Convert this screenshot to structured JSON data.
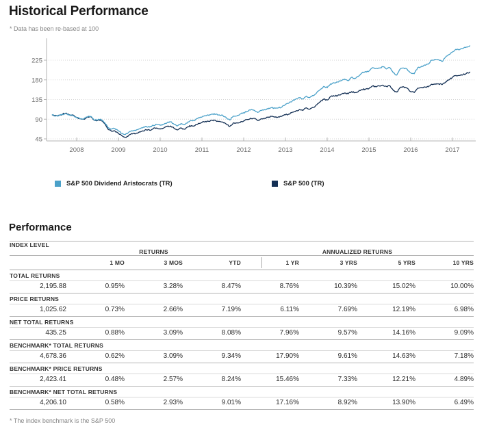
{
  "page": {
    "title": "Historical Performance",
    "subtitle": "* Data has been re-based at 100",
    "section2_title": "Performance",
    "footnote": "* The index benchmark is the S&P 500"
  },
  "colors": {
    "aristocrats_line": "#4BA1C9",
    "sp500_line": "#132F54",
    "axis": "#B3B3B3",
    "gridline": "#D4D4D4",
    "tick_label": "#6E6E6E"
  },
  "chart_data": {
    "type": "line",
    "title": "Historical Performance",
    "note": "* Data has been re-based at 100",
    "xlabel": "",
    "ylabel": "",
    "x_tick_labels": [
      "2008",
      "2009",
      "2010",
      "2011",
      "2012",
      "2013",
      "2014",
      "2015",
      "2016",
      "2017"
    ],
    "y_ticks": [
      45,
      90,
      135,
      180,
      225
    ],
    "ylim": [
      37,
      272
    ],
    "xlim": [
      2007.28,
      2017.56
    ],
    "x_start_year": 2007.417,
    "x_step_years": 0.083333,
    "grid": "horizontal-dotted",
    "legend_position": "bottom",
    "legend": [
      {
        "label": "S&P 500 Dividend Aristocrats (TR)",
        "color": "#4BA1C9"
      },
      {
        "label": "S&P 500 (TR)",
        "color": "#132F54"
      }
    ],
    "series": [
      {
        "name": "S&P 500 Dividend Aristocrats (TR)",
        "color": "#4BA1C9",
        "values": [
          100,
          97.5,
          98.5,
          101,
          102,
          99,
          98.5,
          94,
          91,
          90.5,
          95,
          96.5,
          88.5,
          88,
          90,
          82.5,
          71,
          67.5,
          68.5,
          63.5,
          57.5,
          55,
          60.5,
          63,
          64,
          68,
          70.5,
          73.5,
          72,
          76,
          78.5,
          76,
          78,
          82,
          84,
          78.5,
          75,
          80,
          77.5,
          84,
          87,
          87.5,
          93.5,
          95,
          98,
          98.5,
          102,
          101.5,
          100,
          98.5,
          93.5,
          88,
          97,
          97.5,
          102,
          105,
          108,
          111,
          110.5,
          105.5,
          110,
          112,
          113.5,
          116.5,
          115,
          116,
          118,
          124,
          127,
          132,
          136,
          139,
          136.5,
          143,
          139.5,
          144,
          151,
          158,
          165,
          162,
          171,
          173,
          175,
          178,
          182,
          178,
          186,
          183,
          188,
          196,
          199,
          200,
          208,
          206,
          207,
          210,
          205,
          208,
          196,
          191,
          205,
          207,
          204,
          196,
          194,
          208,
          210,
          214,
          216,
          225,
          227,
          226,
          222,
          232,
          238,
          244,
          250,
          249,
          252,
          255,
          258
        ]
      },
      {
        "name": "S&P 500 (TR)",
        "color": "#132F54",
        "values": [
          100,
          98,
          99,
          102,
          104,
          100,
          99.5,
          93.5,
          90.5,
          90,
          94.5,
          96,
          88,
          87,
          88.5,
          80.5,
          67,
          62.5,
          63,
          58,
          52,
          48,
          53.5,
          56.5,
          57,
          61,
          63.5,
          66,
          64.5,
          68.5,
          70,
          67.5,
          69.5,
          73.5,
          74.5,
          69,
          65.5,
          70,
          67,
          73,
          75.5,
          75.5,
          80.5,
          82.5,
          85,
          85,
          87.5,
          86.5,
          85,
          83.5,
          79,
          73.5,
          81.5,
          81.5,
          82.5,
          86,
          89.5,
          92.5,
          92,
          87,
          90.5,
          92,
          94,
          96.5,
          94.5,
          95.5,
          97,
          100,
          102,
          106,
          109,
          112,
          110,
          116,
          113,
          117,
          123,
          130,
          136,
          134,
          142,
          143,
          144,
          147,
          150,
          148,
          153,
          151,
          154,
          158,
          159,
          160,
          166,
          164,
          166,
          168,
          165,
          167,
          156,
          152,
          163,
          164,
          161,
          153,
          151,
          161,
          162,
          164,
          164,
          170,
          171,
          171,
          169,
          175,
          180,
          186,
          190,
          190,
          192,
          195,
          198
        ]
      }
    ]
  },
  "table": {
    "group_headers": [
      {
        "label": "INDEX LEVEL"
      },
      {
        "label": "RETURNS"
      },
      {
        "label": "ANNUALIZED RETURNS"
      }
    ],
    "column_headers": [
      "1 MO",
      "3 MOS",
      "YTD",
      "1 YR",
      "3 YRS",
      "5 YRS",
      "10 YRS"
    ],
    "rows": [
      {
        "label": "TOTAL RETURNS",
        "index_level": "2,195.88",
        "values": [
          "0.95%",
          "3.28%",
          "8.47%",
          "8.76%",
          "10.39%",
          "15.02%",
          "10.00%"
        ]
      },
      {
        "label": "PRICE RETURNS",
        "index_level": "1,025.62",
        "values": [
          "0.73%",
          "2.66%",
          "7.19%",
          "6.11%",
          "7.69%",
          "12.19%",
          "6.98%"
        ]
      },
      {
        "label": "NET TOTAL RETURNS",
        "index_level": "435.25",
        "values": [
          "0.88%",
          "3.09%",
          "8.08%",
          "7.96%",
          "9.57%",
          "14.16%",
          "9.09%"
        ]
      },
      {
        "label": "BENCHMARK* TOTAL RETURNS",
        "index_level": "4,678.36",
        "values": [
          "0.62%",
          "3.09%",
          "9.34%",
          "17.90%",
          "9.61%",
          "14.63%",
          "7.18%"
        ]
      },
      {
        "label": "BENCHMARK* PRICE RETURNS",
        "index_level": "2,423.41",
        "values": [
          "0.48%",
          "2.57%",
          "8.24%",
          "15.46%",
          "7.33%",
          "12.21%",
          "4.89%"
        ]
      },
      {
        "label": "BENCHMARK* NET TOTAL RETURNS",
        "index_level": "4,206.10",
        "values": [
          "0.58%",
          "2.93%",
          "9.01%",
          "17.16%",
          "8.92%",
          "13.90%",
          "6.49%"
        ]
      }
    ]
  }
}
